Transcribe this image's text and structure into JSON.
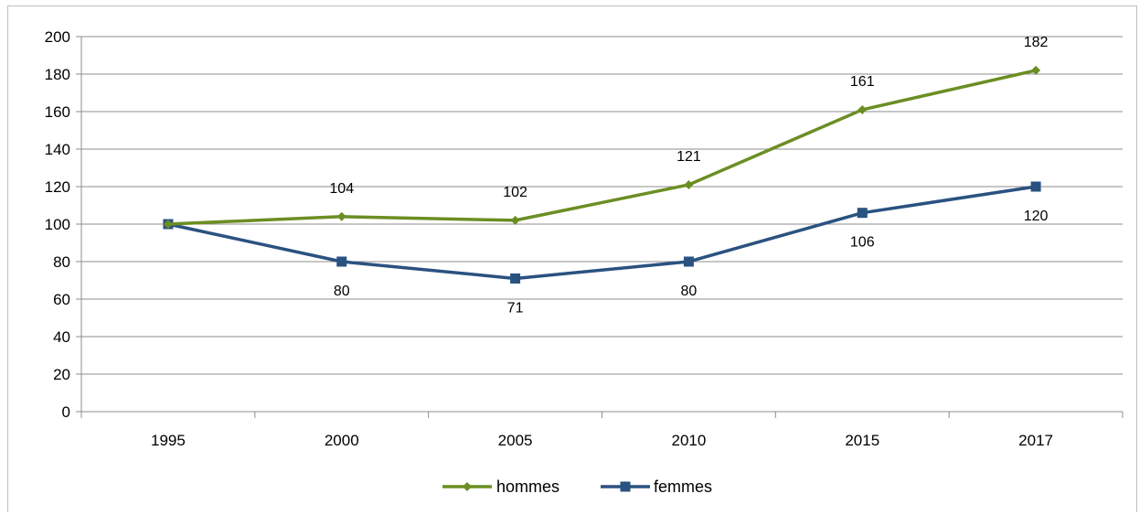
{
  "chart_data": {
    "type": "line",
    "title": "",
    "xlabel": "",
    "ylabel": "",
    "categories": [
      "1995",
      "2000",
      "2005",
      "2010",
      "2015",
      "2017"
    ],
    "ylim": [
      0,
      200
    ],
    "yticks": [
      0,
      20,
      40,
      60,
      80,
      100,
      120,
      140,
      160,
      180,
      200
    ],
    "grid": "horizontal",
    "legend_position": "bottom",
    "series": [
      {
        "name": "hommes",
        "values": [
          100,
          104,
          102,
          121,
          161,
          182
        ],
        "labels": [
          "",
          "104",
          "102",
          "121",
          "161",
          "182"
        ],
        "label_position": "above",
        "color": "#6b8e23",
        "marker": "diamond"
      },
      {
        "name": "femmes",
        "values": [
          100,
          80,
          71,
          80,
          106,
          120
        ],
        "labels": [
          "",
          "80",
          "71",
          "80",
          "106",
          "120"
        ],
        "label_position": "below",
        "color": "#2a5280",
        "marker": "square"
      }
    ]
  }
}
